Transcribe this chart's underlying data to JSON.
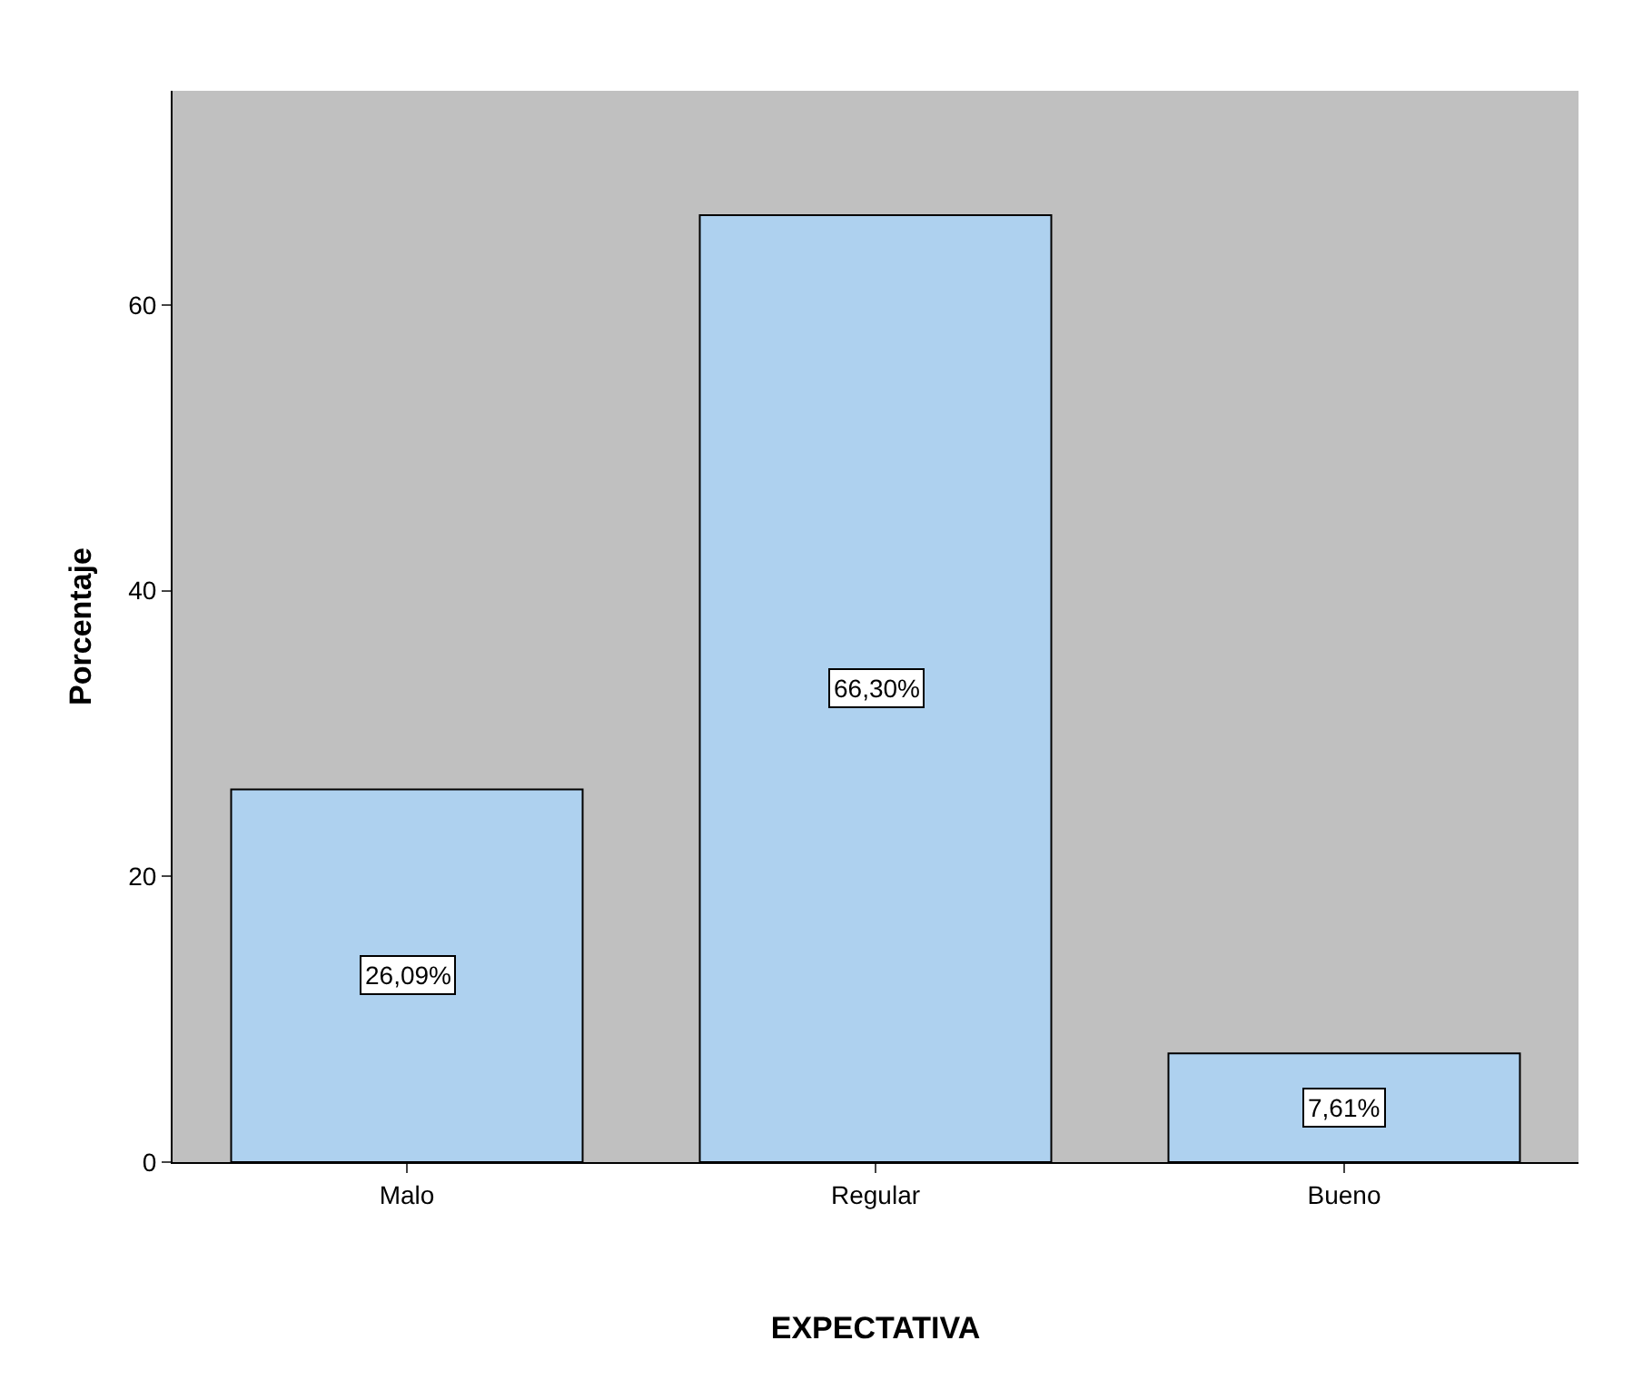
{
  "chart_data": {
    "type": "bar",
    "xlabel": "EXPECTATIVA",
    "ylabel": "Porcentaje",
    "categories": [
      "Malo",
      "Regular",
      "Bueno"
    ],
    "values": [
      26.09,
      66.3,
      7.61
    ],
    "value_labels": [
      "26,09%",
      "66,30%",
      "7,61%"
    ],
    "color": "#aed1ef",
    "ylim": [
      0,
      75
    ],
    "yticks": [
      0,
      20,
      40,
      60
    ],
    "grid": false
  }
}
